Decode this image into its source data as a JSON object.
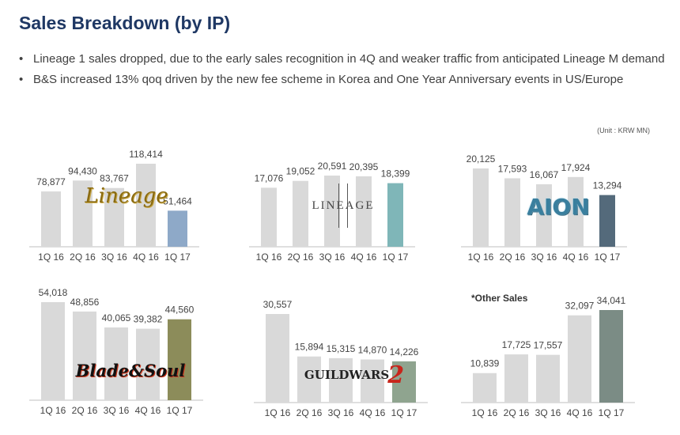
{
  "title": "Sales Breakdown (by IP)",
  "bullets": [
    "Lineage 1 sales dropped, due to the early sales recognition in 4Q and weaker traffic from anticipated Lineage M demand",
    "B&S increased 13% qoq driven by the new fee scheme in Korea and One Year Anniversary events in US/Europe"
  ],
  "bullet_symbol": "•",
  "unit_note": "(Unit : KRW MN)",
  "other_sales_label": "*Other Sales",
  "logos": {
    "lineage": "Lineage",
    "lineage2": "LINEAGE",
    "aion": "AION",
    "bns": "Blade&Soul",
    "gw2_text": "GUILDWARS",
    "gw2_num": "2"
  },
  "colors": {
    "title": "#1f3864",
    "bar_grey": "#d9d9d9",
    "axis": "#bfbfbf"
  },
  "chart_data": [
    {
      "type": "bar",
      "name": "Lineage",
      "categories": [
        "1Q 16",
        "2Q 16",
        "3Q 16",
        "4Q 16",
        "1Q 17"
      ],
      "values": [
        78877,
        94430,
        83767,
        118414,
        51464
      ],
      "labels": [
        "78,877",
        "94,430",
        "83,767",
        "118,414",
        "51,464"
      ],
      "highlight_color": "#8ea9c8",
      "ylim": [
        0,
        118414
      ]
    },
    {
      "type": "bar",
      "name": "Lineage II",
      "categories": [
        "1Q 16",
        "2Q 16",
        "3Q 16",
        "4Q 16",
        "1Q 17"
      ],
      "values": [
        17076,
        19052,
        20591,
        20395,
        18399
      ],
      "labels": [
        "17,076",
        "19,052",
        "20,591",
        "20,395",
        "18,399"
      ],
      "highlight_color": "#7fb6b8",
      "ylim": [
        0,
        20591
      ]
    },
    {
      "type": "bar",
      "name": "Aion",
      "categories": [
        "1Q 16",
        "2Q 16",
        "3Q 16",
        "4Q 16",
        "1Q 17"
      ],
      "values": [
        20125,
        17593,
        16067,
        17924,
        13294
      ],
      "labels": [
        "20,125",
        "17,593",
        "16,067",
        "17,924",
        "13,294"
      ],
      "highlight_color": "#546a7b",
      "ylim": [
        0,
        20125
      ]
    },
    {
      "type": "bar",
      "name": "Blade & Soul",
      "categories": [
        "1Q 16",
        "2Q 16",
        "3Q 16",
        "4Q 16",
        "1Q 17"
      ],
      "values": [
        54018,
        48856,
        40065,
        39382,
        44560
      ],
      "labels": [
        "54,018",
        "48,856",
        "40,065",
        "39,382",
        "44,560"
      ],
      "highlight_color": "#8c8c5a",
      "ylim": [
        0,
        54018
      ]
    },
    {
      "type": "bar",
      "name": "Guild Wars 2",
      "categories": [
        "1Q 16",
        "2Q 16",
        "3Q 16",
        "4Q 16",
        "1Q 17"
      ],
      "values": [
        30557,
        15894,
        15315,
        14870,
        14226
      ],
      "labels": [
        "30,557",
        "15,894",
        "15,315",
        "14,870",
        "14,226"
      ],
      "highlight_color": "#8fa48f",
      "ylim": [
        0,
        30557
      ]
    },
    {
      "type": "bar",
      "name": "Other Sales",
      "categories": [
        "1Q 16",
        "2Q 16",
        "3Q 16",
        "4Q 16",
        "1Q 17"
      ],
      "values": [
        10839,
        17725,
        17557,
        32097,
        34041
      ],
      "labels": [
        "10,839",
        "17,725",
        "17,557",
        "32,097",
        "34,041"
      ],
      "highlight_color": "#7b8c85",
      "ylim": [
        0,
        34041
      ]
    }
  ]
}
